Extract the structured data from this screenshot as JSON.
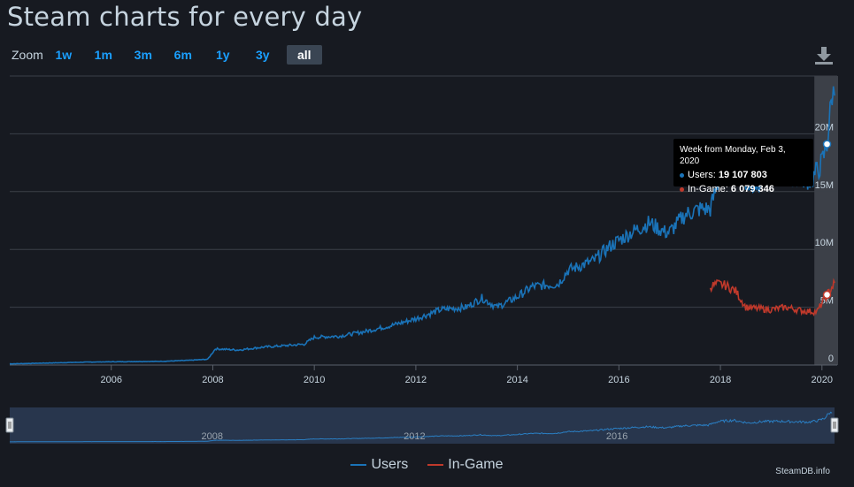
{
  "page": {
    "title": "Steam charts for every day",
    "credit": "SteamDB.info"
  },
  "zoom": {
    "label": "Zoom",
    "options": [
      "1w",
      "1m",
      "3m",
      "6m",
      "1y",
      "3y",
      "all"
    ],
    "active": "all"
  },
  "icons": {
    "download": "download-icon"
  },
  "tooltip": {
    "header": "Week from Monday, Feb 3, 2020",
    "users_label": "Users: ",
    "users_value": "19 107 803",
    "ingame_label": "In-Game: ",
    "ingame_value": "6 079 346"
  },
  "colors": {
    "background": "#171a21",
    "users": "#1a73b8",
    "ingame": "#c0392b",
    "accent": "#1a9fff",
    "grid": "#3b4049"
  },
  "chart_data": {
    "type": "line",
    "title": "Steam charts for every day",
    "xlabel": "",
    "ylabel": "",
    "x_range": [
      2004.0,
      2020.3
    ],
    "ylim": [
      0,
      25000000
    ],
    "y_ticks": [
      0,
      5000000,
      10000000,
      15000000,
      20000000
    ],
    "y_tick_labels": [
      "0",
      "5M",
      "10M",
      "15M",
      "20M"
    ],
    "x_ticks": [
      2006,
      2008,
      2010,
      2012,
      2014,
      2016,
      2018,
      2020
    ],
    "x_tick_labels": [
      "2006",
      "2008",
      "2010",
      "2012",
      "2014",
      "2016",
      "2018",
      "2020"
    ],
    "navigator_tick_labels": [
      "2008",
      "2012",
      "2016"
    ],
    "navigator_ticks": [
      2008,
      2012,
      2016
    ],
    "grid": true,
    "legend_position": "bottom-center",
    "highlight_band": [
      2019.85,
      2020.3
    ],
    "series": [
      {
        "name": "Users",
        "color": "#1a73b8",
        "points": [
          [
            2004.0,
            100000
          ],
          [
            2004.5,
            150000
          ],
          [
            2005.0,
            200000
          ],
          [
            2005.5,
            250000
          ],
          [
            2006.0,
            280000
          ],
          [
            2006.5,
            300000
          ],
          [
            2007.0,
            320000
          ],
          [
            2007.5,
            400000
          ],
          [
            2007.9,
            500000
          ],
          [
            2008.05,
            1400000
          ],
          [
            2008.5,
            1300000
          ],
          [
            2009.0,
            1550000
          ],
          [
            2009.5,
            1700000
          ],
          [
            2009.8,
            1800000
          ],
          [
            2010.0,
            2400000
          ],
          [
            2010.5,
            2500000
          ],
          [
            2011.0,
            2900000
          ],
          [
            2011.5,
            3400000
          ],
          [
            2012.0,
            4000000
          ],
          [
            2012.5,
            4800000
          ],
          [
            2013.0,
            5000000
          ],
          [
            2013.3,
            5800000
          ],
          [
            2013.6,
            5000000
          ],
          [
            2014.0,
            5900000
          ],
          [
            2014.3,
            6800000
          ],
          [
            2014.8,
            7000000
          ],
          [
            2015.0,
            8200000
          ],
          [
            2015.5,
            9000000
          ],
          [
            2015.8,
            10200000
          ],
          [
            2016.0,
            10800000
          ],
          [
            2016.3,
            11600000
          ],
          [
            2016.6,
            12300000
          ],
          [
            2016.9,
            11500000
          ],
          [
            2017.0,
            11500000
          ],
          [
            2017.3,
            13000000
          ],
          [
            2017.6,
            13500000
          ],
          [
            2017.8,
            13500000
          ],
          [
            2018.0,
            16500000
          ],
          [
            2018.3,
            17500000
          ],
          [
            2018.6,
            15300000
          ],
          [
            2018.9,
            16500000
          ],
          [
            2019.2,
            16700000
          ],
          [
            2019.5,
            16300000
          ],
          [
            2019.8,
            16000000
          ],
          [
            2020.0,
            17500000
          ],
          [
            2020.1,
            19107803
          ],
          [
            2020.2,
            23500000
          ],
          [
            2020.25,
            23300000
          ]
        ]
      },
      {
        "name": "In-Game",
        "color": "#c0392b",
        "points": [
          [
            2017.8,
            6800000
          ],
          [
            2017.95,
            7000000
          ],
          [
            2018.1,
            6900000
          ],
          [
            2018.3,
            6400000
          ],
          [
            2018.5,
            5000000
          ],
          [
            2018.7,
            4900000
          ],
          [
            2019.0,
            4800000
          ],
          [
            2019.3,
            5000000
          ],
          [
            2019.6,
            4700000
          ],
          [
            2019.9,
            4600000
          ],
          [
            2020.1,
            6079346
          ],
          [
            2020.25,
            7100000
          ]
        ]
      }
    ]
  }
}
